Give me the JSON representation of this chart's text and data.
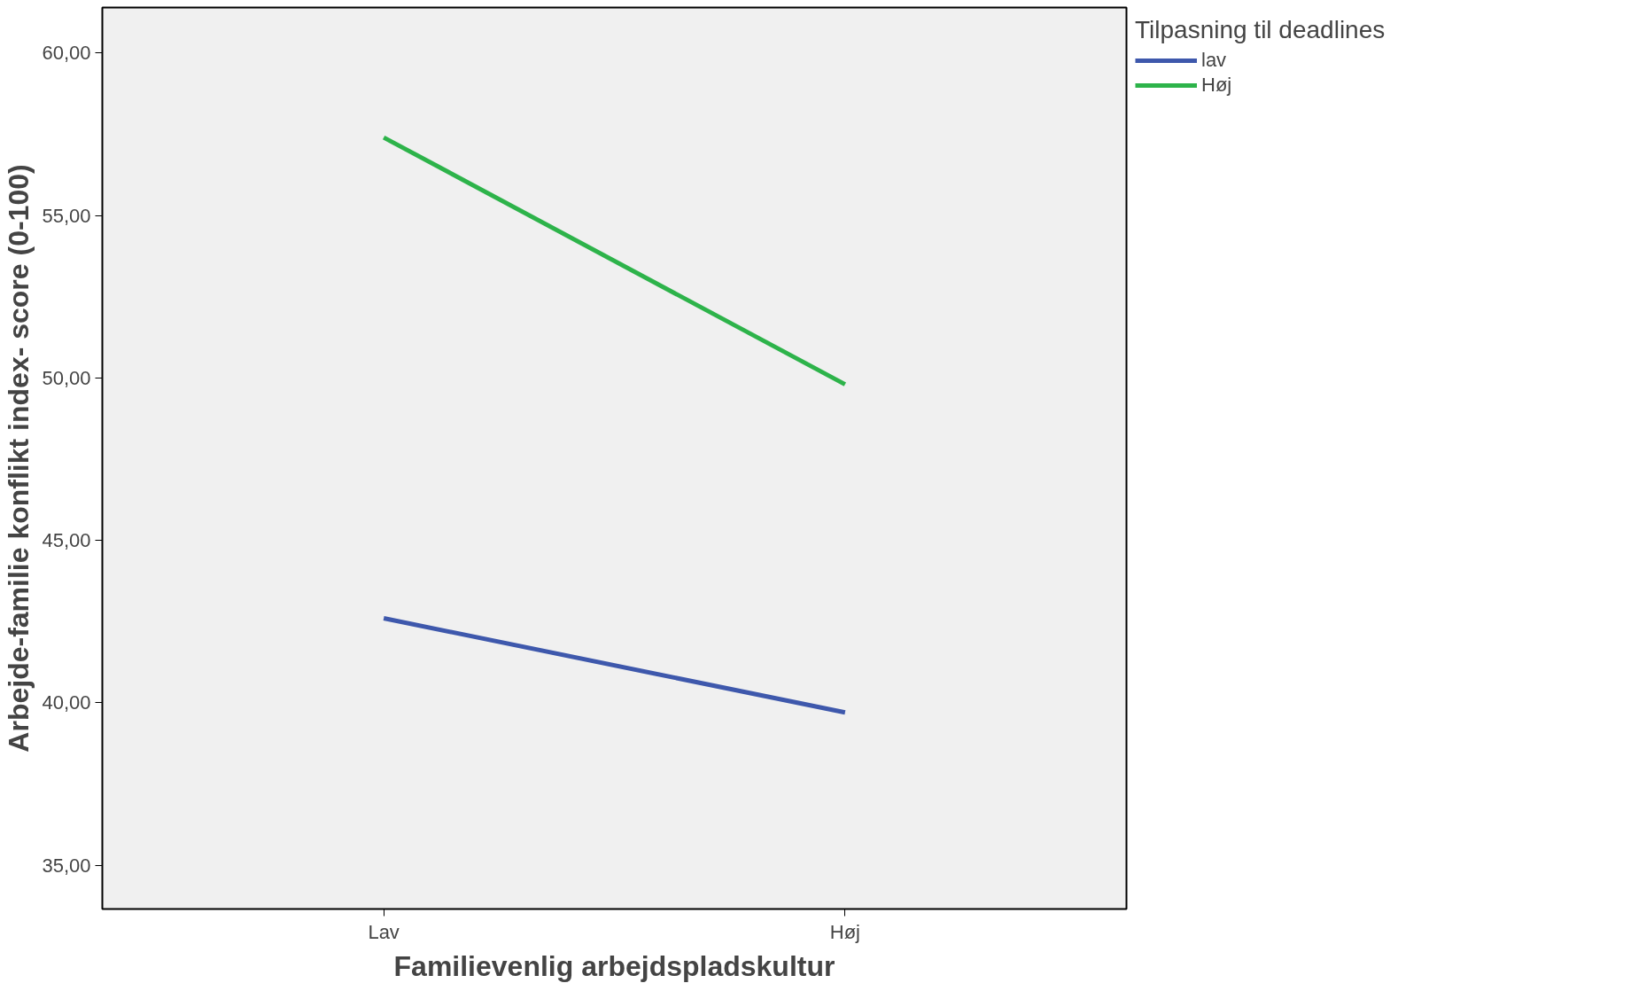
{
  "chart_data": {
    "type": "line",
    "xlabel": "Familievenlig arbejdspladskultur",
    "ylabel": "Arbejde-familie konflikt index- score (0-100)",
    "legend_title": "Tilpasning til deadlines",
    "categories": [
      "Lav",
      "Høj"
    ],
    "series": [
      {
        "name": "lav",
        "color": "#3e58ac",
        "values": [
          42.6,
          39.7
        ]
      },
      {
        "name": "Høj",
        "color": "#2db34a",
        "values": [
          57.4,
          49.8
        ]
      }
    ],
    "ylim": [
      33.65,
      61.4
    ],
    "yticks": [
      {
        "value": 35,
        "label": "35,00"
      },
      {
        "value": 40,
        "label": "40,00"
      },
      {
        "value": 45,
        "label": "45,00"
      },
      {
        "value": 50,
        "label": "50,00"
      },
      {
        "value": 55,
        "label": "55,00"
      },
      {
        "value": 60,
        "label": "60,00"
      }
    ],
    "grid": false,
    "legend": "top right",
    "marker": "none",
    "line_style": "solid"
  }
}
